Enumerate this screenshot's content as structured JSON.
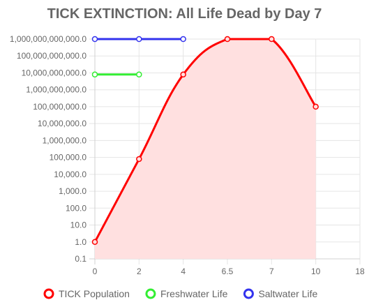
{
  "chart_data": {
    "type": "line",
    "title": "TICK EXTINCTION: All Life Dead by Day 7",
    "xlabel": "",
    "ylabel": "",
    "y_scale": "log",
    "ylim": [
      0.1,
      1000000000000
    ],
    "xlim": [
      0,
      18
    ],
    "x_ticks": [
      0,
      2,
      4,
      6.5,
      7,
      10,
      18
    ],
    "x_tick_labels": [
      "0",
      "2",
      "4",
      "6.5",
      "7",
      "10",
      "18"
    ],
    "y_ticks": [
      0.1,
      1,
      10,
      100,
      1000,
      10000,
      100000,
      1000000,
      10000000,
      100000000,
      1000000000,
      10000000000,
      100000000000,
      1000000000000
    ],
    "y_tick_labels": [
      "0.1",
      "1.0",
      "10.0",
      "100.0",
      "1,000.0",
      "10,000.0",
      "100,000.0",
      "1,000,000.0",
      "10,000,000.0",
      "100,000,000.0",
      "1,000,000,000.0",
      "10,000,000,000.0",
      "100,000,000,000.0",
      "1,000,000,000,000.0"
    ],
    "grid": true,
    "legend_position": "bottom",
    "series": [
      {
        "name": "TICK Population",
        "color": "#ff0000",
        "fill": "#ffe0e0",
        "filled": true,
        "points": [
          [
            0,
            1
          ],
          [
            2,
            80000
          ],
          [
            4,
            8000000000
          ],
          [
            6.5,
            1000000000000
          ],
          [
            7,
            1000000000000
          ],
          [
            10,
            100000000
          ]
        ]
      },
      {
        "name": "Freshwater Life",
        "color": "#33ee33",
        "filled": false,
        "points": [
          [
            0,
            8000000000
          ],
          [
            2,
            8000000000
          ]
        ]
      },
      {
        "name": "Saltwater Life",
        "color": "#3333ee",
        "filled": false,
        "points": [
          [
            0,
            1000000000000
          ],
          [
            2,
            1000000000000
          ],
          [
            4,
            1000000000000
          ]
        ]
      }
    ]
  }
}
